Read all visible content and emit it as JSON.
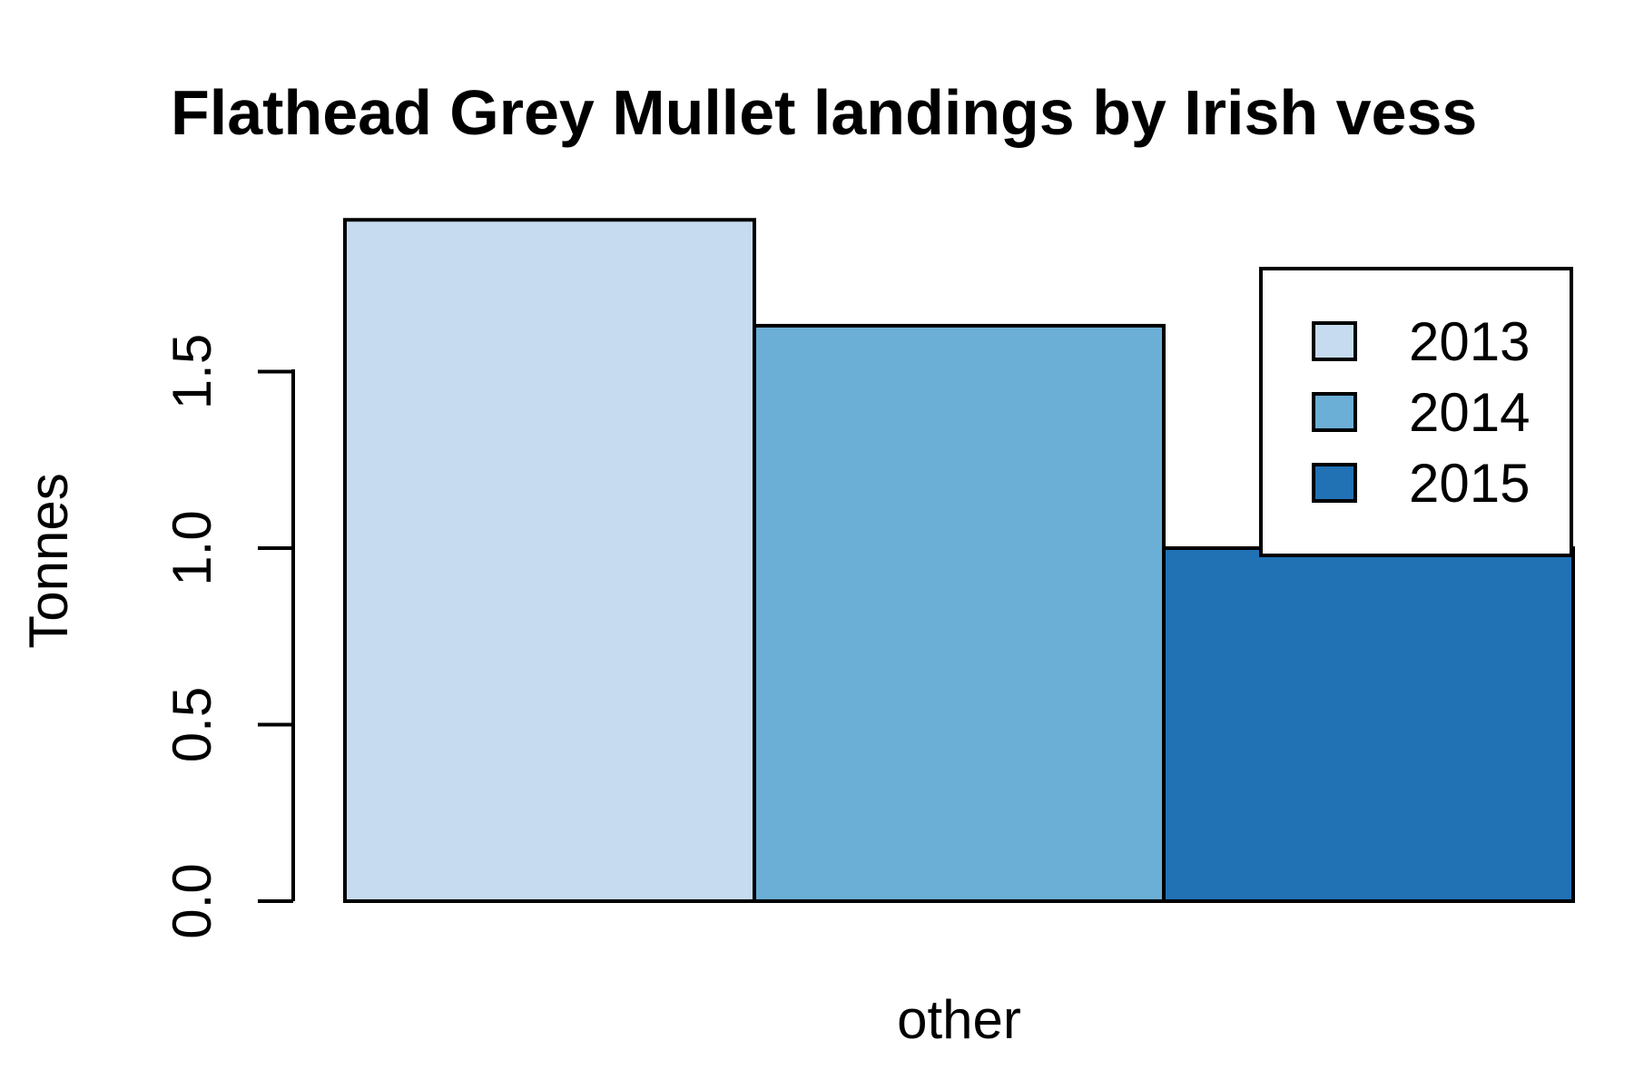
{
  "chart_data": {
    "type": "bar",
    "title": "Flathead Grey Mullet landings by Irish vess",
    "ylabel": "Tonnes",
    "xlabel": "",
    "categories": [
      "other"
    ],
    "series": [
      {
        "name": "2013",
        "values": [
          1.93
        ],
        "color": "#c6dbef"
      },
      {
        "name": "2014",
        "values": [
          1.63
        ],
        "color": "#6baed6"
      },
      {
        "name": "2015",
        "values": [
          1.0
        ],
        "color": "#2171b5"
      }
    ],
    "ylim": [
      0,
      1.93
    ],
    "yticks": [
      "0.0",
      "0.5",
      "1.0",
      "1.5"
    ],
    "legend_position": "top-right",
    "grid": false
  }
}
